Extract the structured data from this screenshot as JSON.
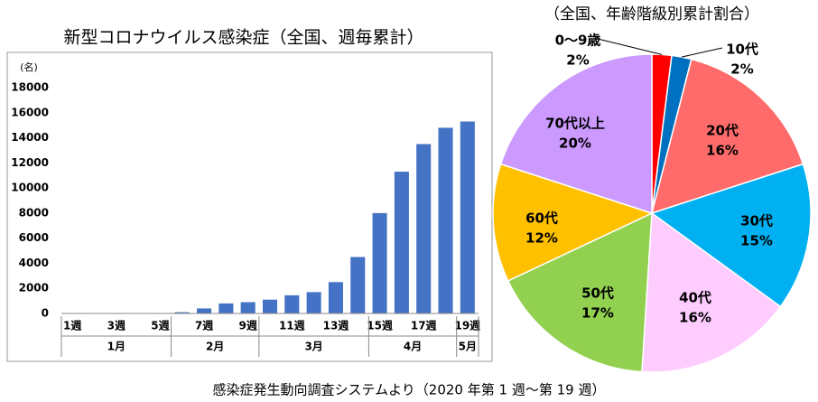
{
  "chart_data": [
    {
      "type": "bar",
      "title": "新型コロナウイルス感染症（全国、週毎累計）",
      "y_unit_label": "(名)",
      "categories": [
        "1週",
        null,
        "3週",
        null,
        "5週",
        null,
        "7週",
        null,
        "9週",
        null,
        "11週",
        null,
        "13週",
        null,
        "15週",
        null,
        "17週",
        null,
        "19週"
      ],
      "values": [
        0,
        0,
        0,
        0,
        20,
        100,
        400,
        800,
        900,
        1100,
        1450,
        1700,
        2500,
        4500,
        8000,
        11300,
        13500,
        14800,
        15300
      ],
      "groups": [
        "1月",
        "2月",
        "3月",
        "4月",
        "5月"
      ],
      "color": "#4472c4",
      "ylim": [
        0,
        18000
      ],
      "yticks": [
        0,
        2000,
        4000,
        6000,
        8000,
        10000,
        12000,
        14000,
        16000,
        18000
      ],
      "grid": false
    },
    {
      "type": "pie",
      "title": "（全国、年齢階級別累計割合）",
      "categories": [
        "0～9歳",
        "10代",
        "20代",
        "30代",
        "40代",
        "50代",
        "60代",
        "70代以上"
      ],
      "values": [
        2,
        2,
        16,
        15,
        16,
        17,
        12,
        20
      ],
      "value_labels": [
        "2%",
        "2%",
        "16%",
        "15%",
        "16%",
        "17%",
        "12%",
        "20%"
      ],
      "colors": [
        "#ff0000",
        "#0070c0",
        "#ff6b6b",
        "#00b0f0",
        "#ffccff",
        "#92d050",
        "#ffc000",
        "#cc99ff"
      ]
    }
  ],
  "footer": "感染症発生動向調査システムより（2020 年第 1 週～第 19 週）"
}
